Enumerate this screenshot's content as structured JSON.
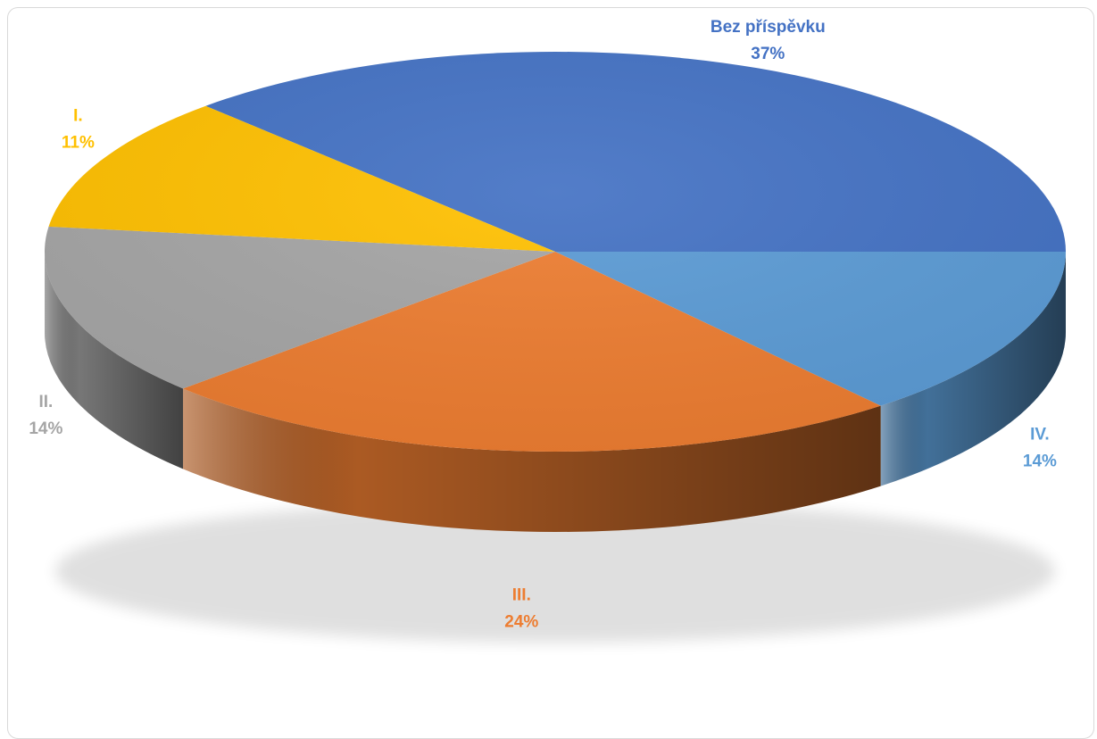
{
  "chart_data": {
    "type": "pie",
    "style": "3d",
    "title": "",
    "slices": [
      {
        "label": "Bez příspěvku",
        "value": 37,
        "value_label": "37%",
        "color": "#4472C4"
      },
      {
        "label": "IV.",
        "value": 14,
        "value_label": "14%",
        "color": "#5B9BD5"
      },
      {
        "label": "III.",
        "value": 24,
        "value_label": "24%",
        "color": "#ED7D31"
      },
      {
        "label": "II.",
        "value": 14,
        "value_label": "14%",
        "color": "#A5A5A5"
      },
      {
        "label": "I.",
        "value": 11,
        "value_label": "11%",
        "color": "#FFC000"
      }
    ]
  }
}
